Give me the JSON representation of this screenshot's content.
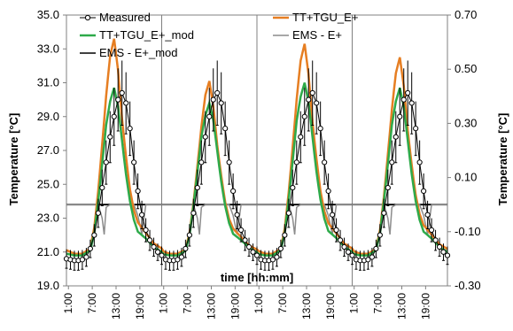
{
  "chart_data": {
    "type": "line",
    "title": "",
    "xlabel": "time [hh:mm]",
    "ylabel": "Temperature [°C]",
    "y2label": "Temperature [°C]",
    "ylim": [
      19.0,
      35.0
    ],
    "y2lim": [
      -0.3,
      0.7
    ],
    "yticks": [
      "19.0",
      "21.0",
      "23.0",
      "25.0",
      "27.0",
      "29.0",
      "31.0",
      "33.0",
      "35.0"
    ],
    "y2ticks": [
      "-0.30",
      "-0.10",
      "0.10",
      "0.30",
      "0.50",
      "0.70"
    ],
    "xticks": [
      "1:00",
      "7:00",
      "13:00",
      "19:00",
      "1:00",
      "7:00",
      "13:00",
      "19:00",
      "1:00",
      "7:00",
      "13:00",
      "19:00",
      "1:00",
      "7:00",
      "13:00",
      "19:00"
    ],
    "grid": "vertical day separators only",
    "legend_placement": "top",
    "series": [
      {
        "name": "Measured",
        "axis": "left",
        "color": "#000000",
        "marker": "open-circle",
        "error_bars": true,
        "day_profile": [
          [
            0,
            20.6
          ],
          [
            1,
            20.55
          ],
          [
            2,
            20.5
          ],
          [
            3,
            20.5
          ],
          [
            4,
            20.55
          ],
          [
            5,
            20.7
          ],
          [
            6,
            21.2
          ],
          [
            7,
            22.0
          ],
          [
            8,
            23.3
          ],
          [
            9,
            24.8
          ],
          [
            10,
            26.3
          ],
          [
            11,
            27.8
          ],
          [
            12,
            29.0
          ],
          [
            13,
            30.0
          ],
          [
            14,
            30.4
          ],
          [
            15,
            29.8
          ],
          [
            16,
            28.3
          ],
          [
            17,
            26.3
          ],
          [
            18,
            24.6
          ],
          [
            19,
            23.2
          ],
          [
            20,
            22.3
          ],
          [
            21,
            21.7
          ],
          [
            22,
            21.3
          ],
          [
            23,
            21.0
          ],
          [
            24,
            20.8
          ]
        ]
      },
      {
        "name": "TT+TGU_E+",
        "axis": "left",
        "color": "#e67e22",
        "day_peaks": [
          33.6,
          31.1,
          33.3,
          32.5
        ],
        "day_profile": [
          [
            0,
            21.1
          ],
          [
            2,
            20.9
          ],
          [
            4,
            20.9
          ],
          [
            6,
            21.2
          ],
          [
            7,
            22.4
          ],
          [
            8,
            24.5
          ],
          [
            9,
            27.2
          ],
          [
            10,
            30.0
          ],
          [
            11,
            32.3
          ],
          [
            12,
            33.3
          ],
          [
            13,
            31.5
          ],
          [
            14,
            28.7
          ],
          [
            15,
            26.5
          ],
          [
            16,
            24.6
          ],
          [
            17,
            23.4
          ],
          [
            18,
            22.7
          ],
          [
            20,
            22.1
          ],
          [
            22,
            21.5
          ],
          [
            24,
            21.2
          ]
        ]
      },
      {
        "name": "TT+TGU_E+_mod",
        "axis": "left",
        "color": "#2eaa4a",
        "day_peaks": [
          30.7,
          29.8,
          31.0,
          30.7
        ],
        "day_profile": [
          [
            0,
            20.9
          ],
          [
            2,
            20.8
          ],
          [
            4,
            20.8
          ],
          [
            6,
            21.1
          ],
          [
            7,
            22.1
          ],
          [
            8,
            24.0
          ],
          [
            9,
            26.2
          ],
          [
            10,
            28.5
          ],
          [
            11,
            29.9
          ],
          [
            12,
            30.7
          ],
          [
            13,
            29.6
          ],
          [
            14,
            27.6
          ],
          [
            15,
            25.6
          ],
          [
            16,
            24.0
          ],
          [
            17,
            22.9
          ],
          [
            18,
            22.2
          ],
          [
            20,
            21.8
          ],
          [
            22,
            21.3
          ],
          [
            24,
            21.0
          ]
        ]
      },
      {
        "name": "EMS - E+",
        "axis": "right",
        "color": "#8c8c8c",
        "day_profile": [
          [
            0,
            0.0
          ],
          [
            8,
            0.0
          ],
          [
            9,
            -0.05
          ],
          [
            9.5,
            -0.11
          ],
          [
            10,
            -0.01
          ],
          [
            11,
            0.0
          ],
          [
            17,
            0.0
          ],
          [
            18,
            -0.04
          ],
          [
            19,
            -0.11
          ],
          [
            20,
            0.0
          ],
          [
            24,
            0.0
          ]
        ]
      },
      {
        "name": "EMS - E+_mod",
        "axis": "right",
        "color": "#000000",
        "day_profile": [
          [
            0,
            0.0
          ],
          [
            24,
            0.0
          ]
        ]
      }
    ]
  }
}
